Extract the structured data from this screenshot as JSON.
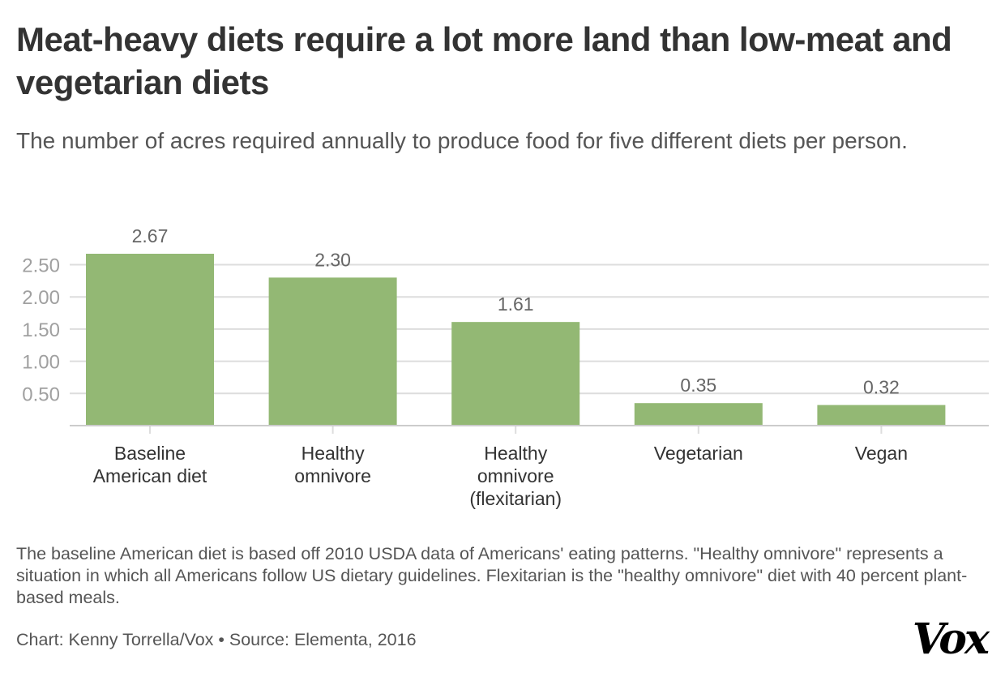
{
  "title": "Meat-heavy diets require a lot more land than low-meat and vegetarian diets",
  "subtitle": "The number of acres required annually to produce food for five different diets per person.",
  "note": "The baseline American diet is based off 2010 USDA data of Americans' eating patterns. \"Healthy omnivore\" represents a situation in which all Americans follow US dietary guidelines. Flexitarian is the \"healthy omnivore\" diet with 40 percent plant-based meals.",
  "credit": "Chart: Kenny Torrella/Vox • Source: Elementa, 2016",
  "logo": "Vox",
  "colors": {
    "bar": "#93b874",
    "grid": "#dddddd",
    "tick_label": "#a0a0a0",
    "value_label": "#666666"
  },
  "chart_data": {
    "type": "bar",
    "categories": [
      [
        "Baseline",
        "American diet"
      ],
      [
        "Healthy",
        "omnivore"
      ],
      [
        "Healthy",
        "omnivore",
        "(flexitarian)"
      ],
      [
        "Vegetarian"
      ],
      [
        "Vegan"
      ]
    ],
    "values": [
      2.67,
      2.3,
      1.61,
      0.35,
      0.32
    ],
    "value_labels": [
      "2.67",
      "2.30",
      "1.61",
      "0.35",
      "0.32"
    ],
    "yticks": [
      0.5,
      1.0,
      1.5,
      2.0,
      2.5
    ],
    "ytick_labels": [
      "0.50",
      "1.00",
      "1.50",
      "2.00",
      "2.50"
    ],
    "ylim": [
      0,
      2.5
    ],
    "grid": true,
    "xlabel": "",
    "ylabel": ""
  }
}
